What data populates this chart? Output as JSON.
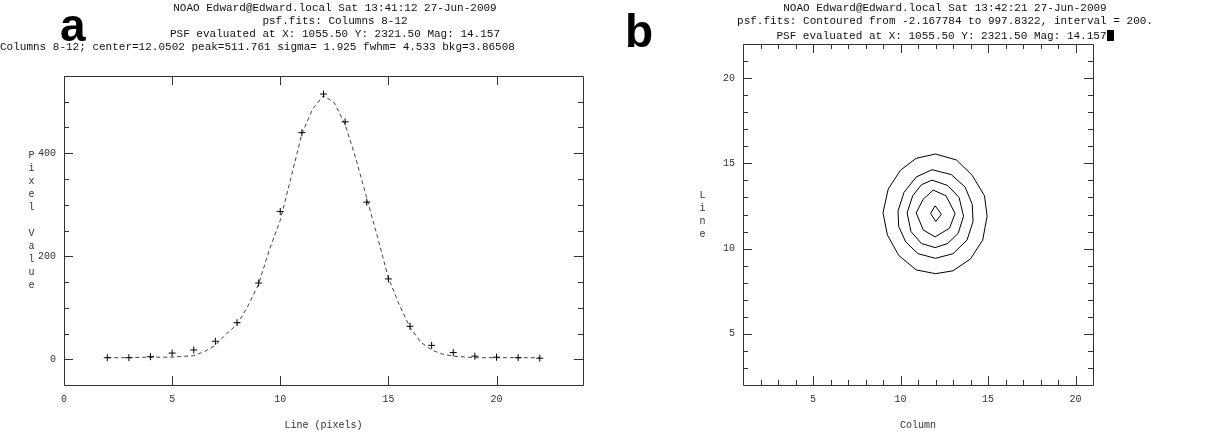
{
  "chart_data": [
    {
      "type": "line",
      "title": "NOAO Edward@Edward.local Sat 13:41:12 27-Jun-2009",
      "subtitle": "psf.fits: Columns 8-12",
      "annotations": [
        "a",
        "PSF evaluated at X: 1055.50 Y: 2321.50 Mag: 14.157",
        "Columns 8-12; center=12.0502 peak=511.761 sigma=  1.925 fwhm=  4.533 bkg=3.86508"
      ],
      "xlabel": "Line (pixels)",
      "ylabel": "Pixel Value",
      "legend": false,
      "xlim": [
        0,
        24
      ],
      "xticks": [
        0,
        5,
        10,
        15,
        20
      ],
      "ylim": [
        -50,
        550
      ],
      "yticks": [
        0,
        {
          "value": 50,
          "label": null
        },
        {
          "value": 100,
          "label": null
        },
        {
          "value": 150,
          "label": null
        },
        200,
        {
          "value": 250,
          "label": null
        },
        {
          "value": 300,
          "label": null
        },
        {
          "value": 350,
          "label": null
        },
        400,
        {
          "value": 450,
          "label": null
        },
        {
          "value": 500,
          "label": null
        }
      ],
      "series": [
        {
          "type": "scatter",
          "color": "#000000",
          "marker": "cross",
          "x": [
            2,
            3,
            4,
            5,
            6,
            7,
            8,
            9,
            10,
            11,
            12,
            13,
            14,
            15,
            16,
            17,
            18,
            19,
            20,
            21,
            22
          ],
          "values": [
            3,
            3,
            5,
            12,
            18,
            35,
            71,
            148,
            287,
            440,
            515,
            461,
            305,
            156,
            64,
            27,
            13,
            6,
            4,
            3,
            2
          ]
        },
        {
          "type": "line",
          "color": "#444444",
          "line_style": "dashed",
          "marker": "none",
          "x": [
            2,
            3,
            4,
            5,
            6,
            6.5,
            7,
            7.5,
            8,
            8.5,
            9,
            9.5,
            10,
            10.5,
            11,
            11.5,
            12,
            12.5,
            13,
            13.5,
            14,
            14.5,
            15,
            15.5,
            16,
            16.5,
            17,
            17.5,
            18,
            19,
            20,
            21,
            22
          ],
          "values": [
            3,
            3,
            4,
            4,
            7,
            15,
            27,
            49,
            67,
            103,
            146,
            213,
            270,
            353,
            438,
            486,
            512,
            498,
            456,
            389,
            313,
            237,
            158,
            106,
            62,
            33,
            18,
            10,
            6,
            3,
            3,
            3,
            3
          ]
        }
      ]
    },
    {
      "type": "line",
      "title": "NOAO Edward@Edward.local Sat 13:42:21 27-Jun-2009",
      "subtitle": "psf.fits: Contoured from -2.167784 to 997.8322, interval = 200.",
      "annotations": [
        "b",
        "PSF evaluated at X: 1055.50 Y: 2321.50 Mag: 14.157"
      ],
      "xlabel": "Column",
      "ylabel": "Line",
      "legend": false,
      "xlim": [
        1,
        21
      ],
      "xticks": [
        {
          "value": 2,
          "label": null
        },
        {
          "value": 3,
          "label": null
        },
        {
          "value": 4,
          "label": null
        },
        5,
        {
          "value": 6,
          "label": null
        },
        {
          "value": 7,
          "label": null
        },
        {
          "value": 8,
          "label": null
        },
        {
          "value": 9,
          "label": null
        },
        10,
        {
          "value": 11,
          "label": null
        },
        {
          "value": 12,
          "label": null
        },
        {
          "value": 13,
          "label": null
        },
        {
          "value": 14,
          "label": null
        },
        15,
        {
          "value": 16,
          "label": null
        },
        {
          "value": 17,
          "label": null
        },
        {
          "value": 18,
          "label": null
        },
        {
          "value": 19,
          "label": null
        },
        20
      ],
      "ylim": [
        2,
        22
      ],
      "yticks": [
        {
          "value": 3,
          "label": null
        },
        {
          "value": 4,
          "label": null
        },
        5,
        {
          "value": 6,
          "label": null
        },
        {
          "value": 7,
          "label": null
        },
        {
          "value": 8,
          "label": null
        },
        {
          "value": 9,
          "label": null
        },
        10,
        {
          "value": 11,
          "label": null
        },
        {
          "value": 12,
          "label": null
        },
        {
          "value": 13,
          "label": null
        },
        {
          "value": 14,
          "label": null
        },
        15,
        {
          "value": 16,
          "label": null
        },
        {
          "value": 17,
          "label": null
        },
        {
          "value": 18,
          "label": null
        },
        {
          "value": 19,
          "label": null
        },
        20,
        {
          "value": 21,
          "label": null
        }
      ]
    }
  ]
}
